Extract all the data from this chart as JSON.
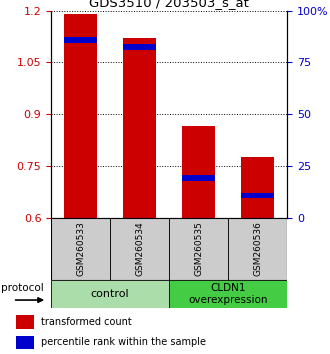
{
  "title": "GDS3510 / 203503_s_at",
  "samples": [
    "GSM260533",
    "GSM260534",
    "GSM260535",
    "GSM260536"
  ],
  "red_values": [
    1.19,
    1.12,
    0.865,
    0.775
  ],
  "blue_values": [
    1.115,
    1.095,
    0.715,
    0.665
  ],
  "ylim": [
    0.6,
    1.2
  ],
  "yticks_left": [
    0.6,
    0.75,
    0.9,
    1.05,
    1.2
  ],
  "yticks_right": [
    0,
    25,
    50,
    75,
    100
  ],
  "yticks_right_vals": [
    0.6,
    0.75,
    0.9,
    1.05,
    1.2
  ],
  "left_tick_color": "#cc0000",
  "right_tick_color": "#0000cc",
  "bar_color": "#cc0000",
  "blue_color": "#0000cc",
  "groups": [
    {
      "label": "control",
      "color": "#aaddaa"
    },
    {
      "label": "CLDN1\noverexpression",
      "color": "#44cc44"
    }
  ],
  "protocol_label": "protocol",
  "legend_red": "transformed count",
  "legend_blue": "percentile rank within the sample",
  "bar_width": 0.55,
  "grid_color": "#000000",
  "sample_bg_color": "#cccccc",
  "plot_bg": "#ffffff"
}
